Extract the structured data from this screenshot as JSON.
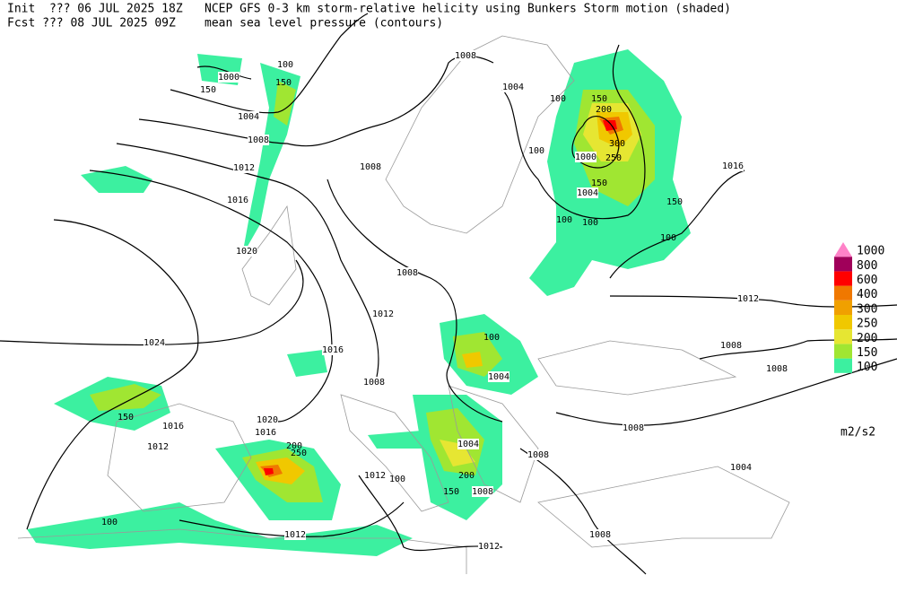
{
  "header": {
    "init": "Init  ??? 06 JUL 2025 18Z",
    "fcst": "Fcst ??? 08 JUL 2025 09Z",
    "title": "NCEP GFS 0-3 km storm-relative helicity using Bunkers Storm motion (shaded)",
    "subtitle": "mean sea level pressure (contours)"
  },
  "legend": {
    "levels": [
      {
        "value": 100,
        "color": "#3cf0a0"
      },
      {
        "value": 150,
        "color": "#a0e632"
      },
      {
        "value": 200,
        "color": "#e6e632"
      },
      {
        "value": 250,
        "color": "#f0c800"
      },
      {
        "value": 300,
        "color": "#f0a000"
      },
      {
        "value": 400,
        "color": "#f07800"
      },
      {
        "value": 600,
        "color": "#ff0000"
      },
      {
        "value": 800,
        "color": "#a0005a"
      },
      {
        "value": 1000,
        "color": "#ff82c8"
      }
    ],
    "unit": "m2/s2"
  },
  "isobar_labels": [
    1008,
    1004,
    1000,
    1004,
    1008,
    1012,
    1016,
    1020,
    1024,
    1008,
    1008,
    1012,
    1016,
    1016,
    1012,
    1020,
    1016,
    1008,
    1012,
    1004,
    1004,
    1008,
    1008,
    1012,
    1012,
    1008,
    1008,
    1004,
    1008,
    1008,
    1012,
    1016,
    1000,
    1004
  ],
  "helicity_labels": [
    100,
    150,
    200,
    300,
    250,
    100,
    150,
    100,
    100,
    150,
    100,
    150,
    100,
    150,
    200,
    250,
    100,
    200,
    150,
    100,
    100,
    150
  ]
}
